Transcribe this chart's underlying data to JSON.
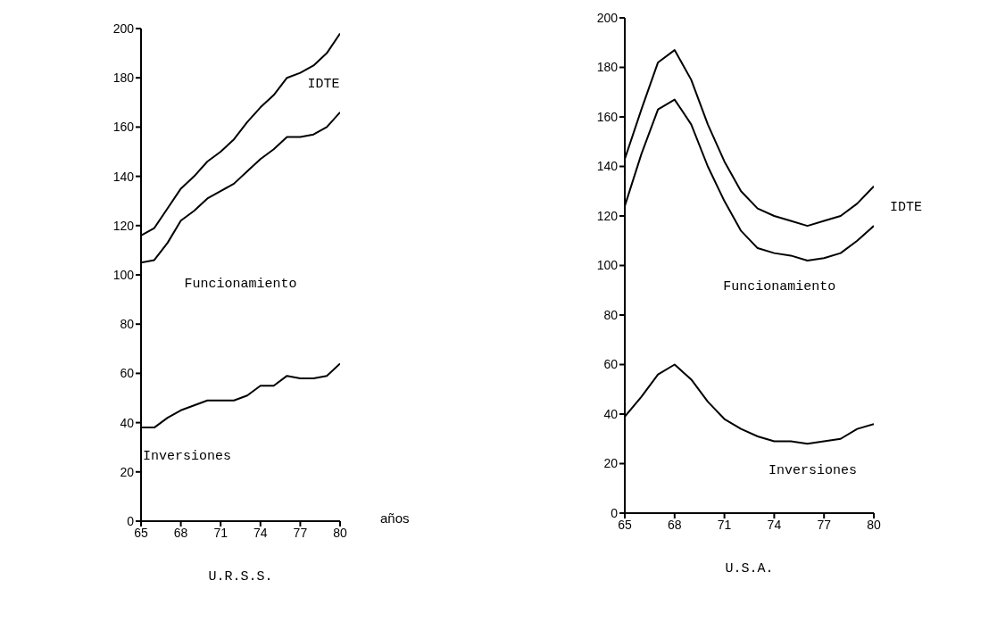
{
  "chart_data": [
    {
      "type": "line",
      "title": "U.R.S.S.",
      "xlabel": "años",
      "x": [
        65,
        66,
        67,
        68,
        69,
        70,
        71,
        72,
        73,
        74,
        75,
        76,
        77,
        78,
        79,
        80
      ],
      "xlim": [
        65,
        80
      ],
      "xticks": [
        65,
        68,
        71,
        74,
        77,
        80
      ],
      "ylim": [
        0,
        200
      ],
      "yticks": [
        0,
        20,
        40,
        60,
        80,
        100,
        120,
        140,
        160,
        180,
        200
      ],
      "marker": "none",
      "series": [
        {
          "name": "IDTE",
          "color": "#000000",
          "values": [
            116,
            119,
            127,
            135,
            140,
            146,
            150,
            155,
            162,
            168,
            173,
            180,
            182,
            185,
            190,
            198
          ]
        },
        {
          "name": "Funcionamiento",
          "color": "#000000",
          "values": [
            105,
            106,
            113,
            122,
            126,
            131,
            134,
            137,
            142,
            147,
            151,
            156,
            156,
            157,
            160,
            166
          ]
        },
        {
          "name": "Inversiones",
          "color": "#000000",
          "values": [
            38,
            38,
            42,
            45,
            47,
            49,
            49,
            49,
            51,
            55,
            55,
            59,
            58,
            58,
            59,
            64
          ]
        }
      ]
    },
    {
      "type": "line",
      "title": "U.S.A.",
      "x": [
        65,
        66,
        67,
        68,
        69,
        70,
        71,
        72,
        73,
        74,
        75,
        76,
        77,
        78,
        79,
        80
      ],
      "xlim": [
        65,
        80
      ],
      "xticks": [
        65,
        68,
        71,
        74,
        77,
        80
      ],
      "ylim": [
        0,
        200
      ],
      "yticks": [
        0,
        20,
        40,
        60,
        80,
        100,
        120,
        140,
        160,
        180,
        200
      ],
      "marker": "none",
      "series": [
        {
          "name": "IDTE",
          "color": "#000000",
          "values": [
            143,
            163,
            182,
            187,
            175,
            157,
            142,
            130,
            123,
            120,
            118,
            116,
            118,
            120,
            125,
            132
          ]
        },
        {
          "name": "Funcionamiento",
          "color": "#000000",
          "values": [
            124,
            145,
            163,
            167,
            157,
            140,
            126,
            114,
            107,
            105,
            104,
            102,
            103,
            105,
            110,
            116
          ]
        },
        {
          "name": "Inversiones",
          "color": "#000000",
          "values": [
            39,
            47,
            56,
            60,
            54,
            45,
            38,
            34,
            31,
            29,
            29,
            28,
            29,
            30,
            34,
            36
          ]
        }
      ]
    }
  ]
}
